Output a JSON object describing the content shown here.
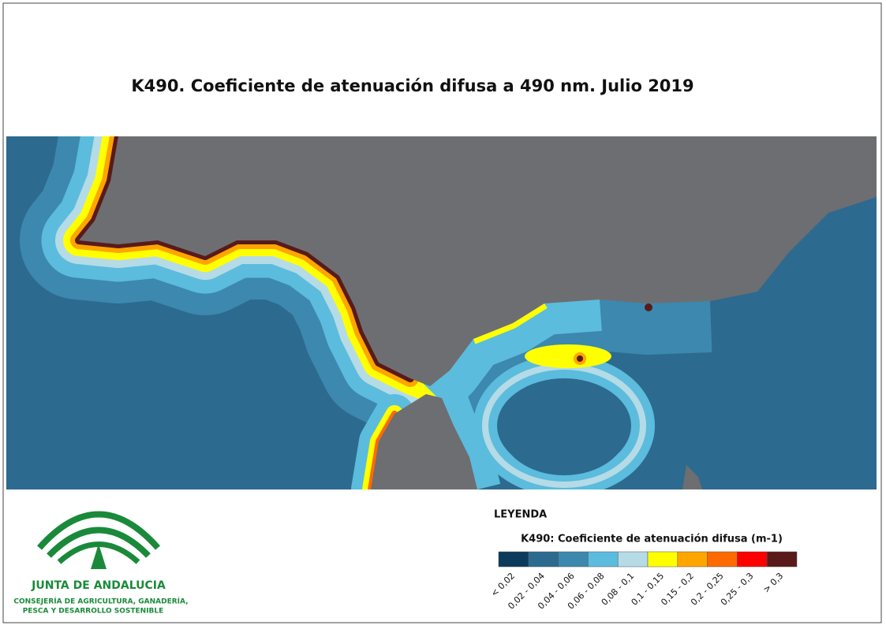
{
  "title": "K490. Coeficiente de atenuación difusa a 490 nm. Julio 2019",
  "legend": {
    "title": "LEYENDA",
    "subtitle": "K490: Coeficiente de atenuación difusa (m-1)",
    "classes": [
      {
        "label": "< 0,02",
        "color": "#0b3a5c"
      },
      {
        "label": "0,02 - 0,04",
        "color": "#2d6a8f"
      },
      {
        "label": "0,04 - 0,06",
        "color": "#3c88ae"
      },
      {
        "label": "0,06 - 0,08",
        "color": "#5bbcdd"
      },
      {
        "label": "0,08 - 0,1",
        "color": "#b5dbe6"
      },
      {
        "label": "0,1 - 0,15",
        "color": "#ffff00"
      },
      {
        "label": "0,15 - 0,2",
        "color": "#ffa500"
      },
      {
        "label": "0,2 - 0,25",
        "color": "#ff6a00"
      },
      {
        "label": "0,25 - 0,3",
        "color": "#ff0000"
      },
      {
        "label": "> 0,3",
        "color": "#5a1a1a"
      }
    ]
  },
  "logo": {
    "name": "JUNTA DE ANDALUCIA",
    "department": [
      "CONSEJERÍA DE AGRICULTURA, GANADERÍA,",
      "PESCA Y DESARROLLO SOSTENIBLE"
    ]
  }
}
